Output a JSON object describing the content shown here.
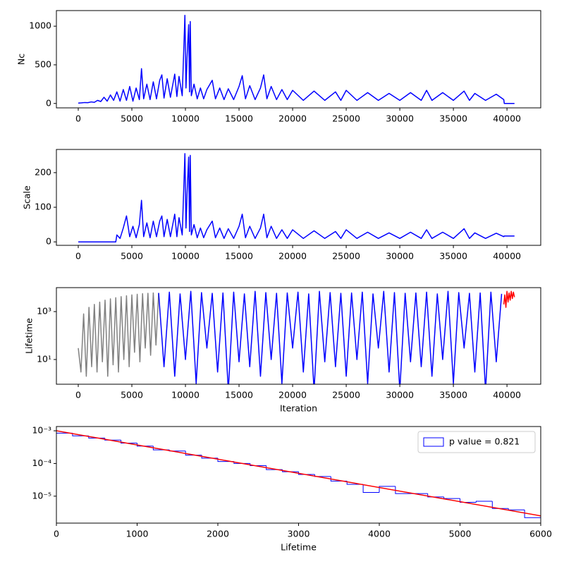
{
  "chart_data": [
    {
      "type": "line",
      "ylabel": "Nc",
      "xlim": [
        -2040,
        43150
      ],
      "xticks": [
        0,
        5000,
        10000,
        15000,
        20000,
        25000,
        30000,
        35000,
        40000
      ],
      "ylim": [
        -57,
        1202
      ],
      "yticks": [
        0,
        500,
        1000
      ],
      "series": [
        {
          "color": "blue",
          "x": [
            0,
            300,
            600,
            900,
            1200,
            1500,
            1800,
            2100,
            2400,
            2700,
            3000,
            3300,
            3600,
            3900,
            4200,
            4500,
            4800,
            5100,
            5400,
            5700,
            5900,
            6100,
            6400,
            6700,
            7000,
            7300,
            7600,
            7800,
            8000,
            8300,
            8600,
            9000,
            9200,
            9400,
            9700,
            9950,
            10050,
            10150,
            10300,
            10380,
            10450,
            10550,
            10800,
            11100,
            11400,
            11700,
            12000,
            12500,
            12800,
            13200,
            13600,
            14000,
            14500,
            15000,
            15300,
            15600,
            16000,
            16500,
            17000,
            17300,
            17600,
            18000,
            18500,
            19000,
            19500,
            20000,
            21000,
            22000,
            23000,
            24000,
            24500,
            25000,
            26000,
            27000,
            28000,
            29000,
            30000,
            31000,
            32000,
            32500,
            33000,
            34000,
            35000,
            36000,
            36500,
            37000,
            38000,
            39000,
            39700,
            39750,
            40700
          ],
          "values": [
            5,
            8,
            12,
            10,
            20,
            15,
            40,
            25,
            80,
            30,
            110,
            40,
            150,
            30,
            180,
            40,
            220,
            30,
            200,
            50,
            450,
            60,
            250,
            50,
            280,
            60,
            300,
            370,
            70,
            320,
            80,
            380,
            90,
            350,
            100,
            1140,
            200,
            600,
            1020,
            150,
            1060,
            100,
            250,
            60,
            200,
            60,
            180,
            300,
            60,
            200,
            50,
            190,
            50,
            220,
            360,
            60,
            230,
            50,
            200,
            370,
            60,
            220,
            50,
            180,
            50,
            170,
            40,
            160,
            40,
            150,
            40,
            170,
            40,
            140,
            40,
            130,
            40,
            140,
            40,
            170,
            40,
            140,
            40,
            160,
            40,
            130,
            40,
            120,
            50,
            0,
            0
          ]
        }
      ]
    },
    {
      "type": "line",
      "ylabel": "Scale",
      "xlim": [
        -2040,
        43150
      ],
      "xticks": [
        0,
        5000,
        10000,
        15000,
        20000,
        25000,
        30000,
        35000,
        40000
      ],
      "ylim": [
        -10,
        267
      ],
      "yticks": [
        0,
        100,
        200
      ],
      "series": [
        {
          "color": "blue",
          "x": [
            0,
            300,
            600,
            900,
            1200,
            1500,
            1800,
            2100,
            2400,
            2700,
            3000,
            3300,
            3500,
            3600,
            3900,
            4200,
            4500,
            4800,
            5100,
            5400,
            5700,
            5900,
            6100,
            6400,
            6700,
            7000,
            7300,
            7600,
            7800,
            8000,
            8300,
            8600,
            9000,
            9200,
            9400,
            9700,
            9950,
            10050,
            10150,
            10300,
            10380,
            10450,
            10550,
            10800,
            11100,
            11400,
            11700,
            12000,
            12500,
            12800,
            13200,
            13600,
            14000,
            14500,
            15000,
            15300,
            15600,
            16000,
            16500,
            17000,
            17300,
            17600,
            18000,
            18500,
            19000,
            19500,
            20000,
            21000,
            22000,
            23000,
            24000,
            24500,
            25000,
            26000,
            27000,
            28000,
            29000,
            30000,
            31000,
            32000,
            32500,
            33000,
            34000,
            35000,
            36000,
            36500,
            37000,
            38000,
            39000,
            39700,
            39750,
            40700
          ],
          "values": [
            0,
            0,
            0,
            0,
            0,
            0,
            0,
            0,
            0,
            0,
            0,
            0,
            0,
            20,
            10,
            40,
            75,
            15,
            45,
            12,
            50,
            120,
            15,
            55,
            12,
            60,
            15,
            60,
            75,
            15,
            65,
            15,
            80,
            15,
            70,
            20,
            255,
            40,
            140,
            245,
            30,
            250,
            20,
            50,
            12,
            40,
            12,
            35,
            60,
            12,
            40,
            10,
            38,
            10,
            45,
            80,
            12,
            45,
            10,
            40,
            80,
            12,
            45,
            10,
            35,
            10,
            35,
            10,
            32,
            10,
            30,
            10,
            35,
            10,
            28,
            10,
            26,
            10,
            28,
            10,
            35,
            10,
            28,
            10,
            38,
            10,
            26,
            10,
            25,
            15,
            17,
            17
          ]
        }
      ]
    },
    {
      "type": "line",
      "ylabel": "Lifetime",
      "xlabel": "Iteration",
      "log_y": true,
      "xlim": [
        -2040,
        43150
      ],
      "xticks": [
        0,
        5000,
        10000,
        15000,
        20000,
        25000,
        30000,
        35000,
        40000
      ],
      "ylim": [
        0.93,
        10000
      ],
      "yticks": [
        {
          "value": 10,
          "label": "10¹"
        },
        {
          "value": 1000,
          "label": "10³"
        }
      ],
      "series": [
        {
          "color": "gray",
          "x": [
            0,
            250,
            500,
            750,
            1000,
            1250,
            1500,
            1750,
            2000,
            2250,
            2500,
            2750,
            3000,
            3250,
            3500,
            3750,
            4000,
            4250,
            4500,
            4750,
            5000,
            5250,
            5500,
            5750,
            6000,
            6250,
            6500,
            6750,
            7000,
            7250,
            7500
          ],
          "values": [
            30,
            3,
            800,
            2,
            1500,
            5,
            2000,
            3,
            2500,
            8,
            3000,
            2,
            3400,
            6,
            3800,
            3,
            4200,
            10,
            4600,
            5,
            5000,
            20,
            5300,
            8,
            5600,
            30,
            5800,
            15,
            6000,
            40,
            6000
          ]
        },
        {
          "color": "blue",
          "x": [
            7500,
            8000,
            8500,
            9000,
            9500,
            10000,
            10500,
            11000,
            11500,
            12000,
            12500,
            13000,
            13500,
            14000,
            14500,
            15000,
            15500,
            16000,
            16500,
            17000,
            17500,
            18000,
            18500,
            19000,
            19500,
            20000,
            20500,
            21000,
            21500,
            22000,
            22500,
            23000,
            23500,
            24000,
            24500,
            25000,
            25500,
            26000,
            26500,
            27000,
            27500,
            28000,
            28500,
            29000,
            29500,
            30000,
            30500,
            31000,
            31500,
            32000,
            32500,
            33000,
            33500,
            34000,
            34500,
            35000,
            35500,
            36000,
            36500,
            37000,
            37500,
            38000,
            38500,
            39000,
            39500
          ],
          "values": [
            6000,
            5,
            6500,
            2,
            5500,
            10,
            7000,
            1,
            6200,
            30,
            5800,
            3,
            6000,
            0.5,
            6500,
            8,
            5500,
            5,
            7000,
            2,
            6200,
            10,
            5800,
            1,
            6000,
            30,
            6500,
            3,
            5500,
            0.5,
            7000,
            8,
            6200,
            5,
            5800,
            2,
            6000,
            10,
            6500,
            1,
            5500,
            30,
            7000,
            3,
            6200,
            0.5,
            5800,
            8,
            6000,
            5,
            6500,
            2,
            5500,
            10,
            7000,
            1,
            6200,
            30,
            5800,
            3,
            6000,
            0.5,
            6500,
            8,
            5500
          ]
        },
        {
          "color": "red",
          "x": [
            39700,
            39800,
            39900,
            40000,
            40100,
            40200,
            40300,
            40400,
            40500,
            40600,
            40700
          ],
          "values": [
            2000,
            5000,
            1500,
            7000,
            2500,
            6000,
            3000,
            7000,
            3500,
            6500,
            4000
          ]
        }
      ]
    },
    {
      "type": "histogram",
      "xlabel": "Lifetime",
      "log_y": true,
      "xlim": [
        0,
        6000
      ],
      "xticks": [
        0,
        1000,
        2000,
        3000,
        4000,
        5000,
        6000
      ],
      "ylim": [
        1.5e-06,
        0.00135
      ],
      "yticks": [
        {
          "value": 1e-05,
          "label": "10⁻⁵"
        },
        {
          "value": 0.0001,
          "label": "10⁻⁴"
        },
        {
          "value": 0.001,
          "label": "10⁻³"
        }
      ],
      "legend": "upper right",
      "series": [
        {
          "name": "p value = 0.821",
          "color": "blue",
          "bins": [
            0,
            200,
            400,
            600,
            800,
            1000,
            1200,
            1400,
            1600,
            1800,
            2000,
            2200,
            2400,
            2600,
            2800,
            3000,
            3200,
            3400,
            3600,
            3800,
            4000,
            4200,
            4400,
            4600,
            4800,
            5000,
            5200,
            5400,
            5600,
            5800,
            6000
          ],
          "values": [
            0.00085,
            0.0007,
            0.0006,
            0.00052,
            0.00042,
            0.00034,
            0.00026,
            0.00024,
            0.00018,
            0.000145,
            0.000115,
            0.0001,
            8.6e-05,
            6.5e-05,
            5.6e-05,
            4.6e-05,
            4e-05,
            2.9e-05,
            2.3e-05,
            1.3e-05,
            2e-05,
            1.2e-05,
            1.2e-05,
            9.5e-06,
            8.5e-06,
            6.5e-06,
            7e-06,
            4.2e-06,
            3.8e-06,
            2.2e-06
          ]
        }
      ],
      "fit": {
        "color": "red",
        "x": [
          0,
          6000
        ],
        "values": [
          0.001,
          2.5e-06
        ]
      }
    }
  ]
}
